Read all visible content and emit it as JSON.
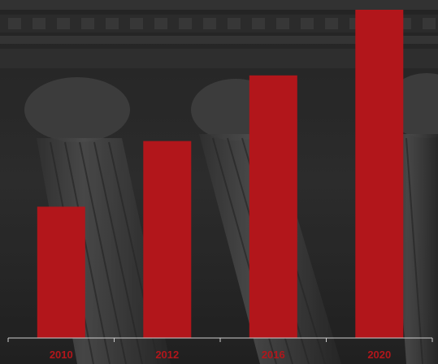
{
  "colors": {
    "bar": "#b2161b",
    "axis": "#cfcfcf",
    "tick_label": "#b2161b",
    "background": "#2b2b2b"
  },
  "background_image": {
    "icon": "classical-columns-photo"
  },
  "chart_data": {
    "type": "bar",
    "categories": [
      "2010",
      "2012",
      "2016",
      "2020"
    ],
    "values": [
      40,
      60,
      80,
      100
    ],
    "title": "",
    "xlabel": "",
    "ylabel": "",
    "ylim": [
      0,
      100
    ],
    "grid": false,
    "legend": "none"
  }
}
